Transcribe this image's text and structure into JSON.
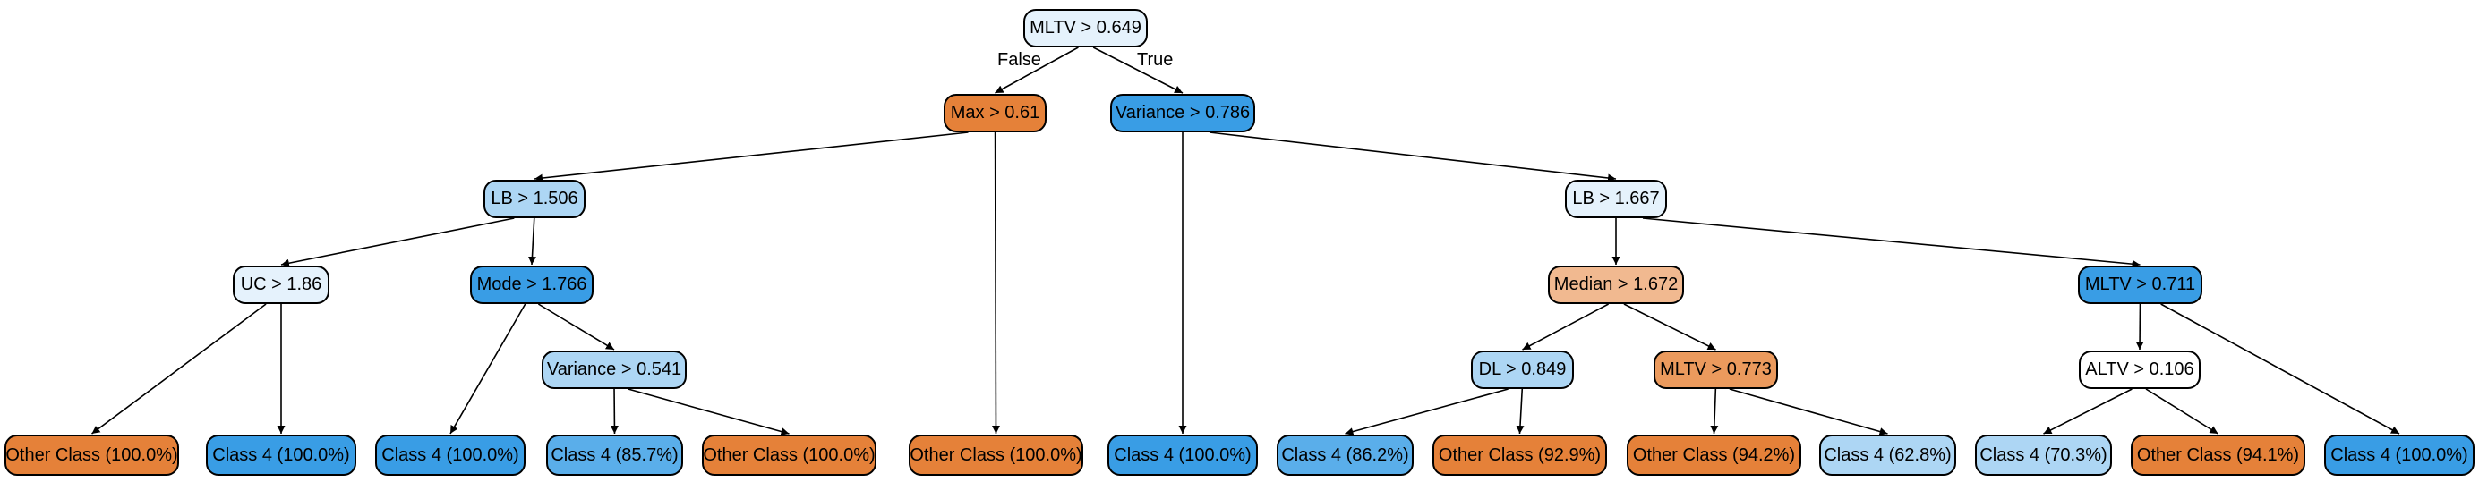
{
  "colors": {
    "orange_strong": "#e58139",
    "orange_medium": "#eb9a5d",
    "orange_light": "#f1b990",
    "blue_strong": "#399de5",
    "blue_medium": "#5aaeea",
    "blue_light": "#add6f4",
    "blue_pale": "#e5f2fc",
    "white": "#ffffff",
    "outline": "#000000"
  },
  "tree": {
    "root": {
      "label": "MLTV > 0.649",
      "fill": "blue_pale"
    },
    "edge_labels": {
      "false_label": "False",
      "true_label": "True"
    },
    "nodes": [
      {
        "id": "max",
        "label": "Max > 0.61",
        "fill": "orange_strong",
        "kind": "split"
      },
      {
        "id": "variance1",
        "label": "Variance > 0.786",
        "fill": "blue_strong",
        "kind": "split"
      },
      {
        "id": "lb1",
        "label": "LB > 1.506",
        "fill": "blue_light",
        "kind": "split"
      },
      {
        "id": "lb2",
        "label": "LB > 1.667",
        "fill": "blue_pale",
        "kind": "split"
      },
      {
        "id": "uc",
        "label": "UC > 1.86",
        "fill": "blue_pale",
        "kind": "split"
      },
      {
        "id": "mode",
        "label": "Mode > 1.766",
        "fill": "blue_strong",
        "kind": "split"
      },
      {
        "id": "median",
        "label": "Median > 1.672",
        "fill": "orange_light",
        "kind": "split"
      },
      {
        "id": "mltv2",
        "label": "MLTV > 0.711",
        "fill": "blue_strong",
        "kind": "split"
      },
      {
        "id": "variance2",
        "label": "Variance > 0.541",
        "fill": "blue_light",
        "kind": "split"
      },
      {
        "id": "dl",
        "label": "DL > 0.849",
        "fill": "blue_light",
        "kind": "split"
      },
      {
        "id": "mltv3",
        "label": "MLTV > 0.773",
        "fill": "orange_medium",
        "kind": "split"
      },
      {
        "id": "altv",
        "label": "ALTV > 0.106",
        "fill": "white",
        "kind": "split"
      },
      {
        "id": "leaf1",
        "label": "Other Class (100.0%)",
        "fill": "orange_strong",
        "kind": "leaf"
      },
      {
        "id": "leaf2",
        "label": "Class 4 (100.0%)",
        "fill": "blue_strong",
        "kind": "leaf"
      },
      {
        "id": "leaf3",
        "label": "Class 4 (100.0%)",
        "fill": "blue_strong",
        "kind": "leaf"
      },
      {
        "id": "leaf4",
        "label": "Class 4 (85.7%)",
        "fill": "blue_medium",
        "kind": "leaf"
      },
      {
        "id": "leaf5",
        "label": "Other Class (100.0%)",
        "fill": "orange_strong",
        "kind": "leaf"
      },
      {
        "id": "leaf6",
        "label": "Other Class (100.0%)",
        "fill": "orange_strong",
        "kind": "leaf"
      },
      {
        "id": "leaf7",
        "label": "Class 4 (100.0%)",
        "fill": "blue_strong",
        "kind": "leaf"
      },
      {
        "id": "leaf8",
        "label": "Class 4 (86.2%)",
        "fill": "blue_medium",
        "kind": "leaf"
      },
      {
        "id": "leaf9",
        "label": "Other Class (92.9%)",
        "fill": "orange_strong",
        "kind": "leaf"
      },
      {
        "id": "leaf10",
        "label": "Other Class (94.2%)",
        "fill": "orange_strong",
        "kind": "leaf"
      },
      {
        "id": "leaf11",
        "label": "Class 4 (62.8%)",
        "fill": "blue_light",
        "kind": "leaf"
      },
      {
        "id": "leaf12",
        "label": "Class 4 (70.3%)",
        "fill": "blue_light",
        "kind": "leaf"
      },
      {
        "id": "leaf13",
        "label": "Other Class (94.1%)",
        "fill": "orange_strong",
        "kind": "leaf"
      },
      {
        "id": "leaf14",
        "label": "Class 4 (100.0%)",
        "fill": "blue_strong",
        "kind": "leaf"
      }
    ],
    "edges": [
      [
        "root",
        "max"
      ],
      [
        "root",
        "variance1"
      ],
      [
        "max",
        "lb1"
      ],
      [
        "max",
        "leaf6"
      ],
      [
        "variance1",
        "leaf7"
      ],
      [
        "variance1",
        "lb2"
      ],
      [
        "lb1",
        "uc"
      ],
      [
        "lb1",
        "mode"
      ],
      [
        "uc",
        "leaf1"
      ],
      [
        "uc",
        "leaf2"
      ],
      [
        "mode",
        "leaf3"
      ],
      [
        "mode",
        "variance2"
      ],
      [
        "variance2",
        "leaf4"
      ],
      [
        "variance2",
        "leaf5"
      ],
      [
        "lb2",
        "median"
      ],
      [
        "lb2",
        "mltv2"
      ],
      [
        "median",
        "dl"
      ],
      [
        "median",
        "mltv3"
      ],
      [
        "dl",
        "leaf8"
      ],
      [
        "dl",
        "leaf9"
      ],
      [
        "mltv3",
        "leaf10"
      ],
      [
        "mltv3",
        "leaf11"
      ],
      [
        "mltv2",
        "altv"
      ],
      [
        "mltv2",
        "leaf14"
      ],
      [
        "altv",
        "leaf12"
      ],
      [
        "altv",
        "leaf13"
      ]
    ]
  }
}
